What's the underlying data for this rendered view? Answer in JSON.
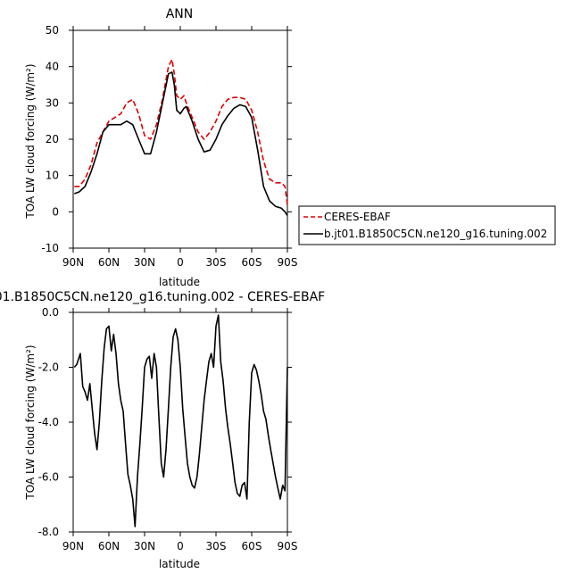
{
  "chart_data": [
    {
      "type": "line",
      "title": "ANN",
      "xlabel": "latitude",
      "ylabel": "TOA LW cloud forcing (W/m²)",
      "xlim": [
        90,
        -90
      ],
      "ylim": [
        -10,
        50
      ],
      "xticks": [
        90,
        60,
        30,
        0,
        -30,
        -60,
        -90
      ],
      "xtick_labels": [
        "90N",
        "60N",
        "30N",
        "0",
        "30S",
        "60S",
        "90S"
      ],
      "yticks": [
        -10,
        0,
        10,
        20,
        30,
        40,
        50
      ],
      "ytick_labels": [
        "-10",
        "0",
        "10",
        "20",
        "30",
        "40",
        "50"
      ],
      "legend": "right",
      "series": [
        {
          "name": "CERES-EBAF",
          "color": "#dd0000",
          "style": "dashed",
          "x": [
            89,
            85,
            80,
            75,
            70,
            65,
            60,
            55,
            50,
            45,
            40,
            35,
            30,
            25,
            20,
            15,
            10,
            7,
            5,
            3,
            0,
            -3,
            -5,
            -10,
            -15,
            -20,
            -25,
            -30,
            -35,
            -40,
            -45,
            -50,
            -55,
            -60,
            -65,
            -70,
            -75,
            -80,
            -85,
            -88,
            -90
          ],
          "y": [
            7,
            7,
            9,
            13,
            19,
            22,
            25,
            26,
            27,
            30,
            31,
            27,
            21,
            20,
            24,
            31,
            40,
            42,
            38,
            32,
            31,
            32,
            30,
            26,
            22,
            20,
            22,
            25,
            29,
            31,
            31.5,
            31.5,
            31,
            28,
            22,
            14,
            9,
            8,
            8,
            7,
            2
          ]
        },
        {
          "name": "b.jt01.B1850C5CN.ne120_g16.tuning.002",
          "color": "#000000",
          "style": "solid",
          "x": [
            89,
            85,
            80,
            75,
            70,
            65,
            60,
            55,
            50,
            45,
            40,
            35,
            30,
            25,
            20,
            15,
            10,
            7,
            5,
            3,
            0,
            -3,
            -5,
            -10,
            -15,
            -20,
            -25,
            -30,
            -35,
            -40,
            -45,
            -50,
            -55,
            -60,
            -65,
            -70,
            -75,
            -80,
            -85,
            -88,
            -90
          ],
          "y": [
            5,
            5.5,
            7,
            11,
            16,
            22,
            24,
            24,
            24,
            25,
            24,
            20,
            16,
            16,
            22,
            30,
            38,
            38.5,
            35,
            28,
            27,
            28.5,
            29,
            25,
            20,
            16.5,
            17,
            20,
            24,
            26.5,
            28.5,
            29.5,
            29,
            26,
            17,
            7,
            3,
            1.5,
            1,
            0,
            -1
          ]
        }
      ]
    },
    {
      "type": "line",
      "title": "01.B1850C5CN.ne120_g16.tuning.002 - CERES-EBAF",
      "xlabel": "latitude",
      "ylabel": "TOA LW cloud forcing (W/m²)",
      "xlim": [
        90,
        -90
      ],
      "ylim": [
        -8,
        0
      ],
      "xticks": [
        90,
        60,
        30,
        0,
        -30,
        -60,
        -90
      ],
      "xtick_labels": [
        "90N",
        "60N",
        "30N",
        "0",
        "30S",
        "60S",
        "90S"
      ],
      "yticks": [
        -8,
        -6,
        -4,
        -2,
        0
      ],
      "ytick_labels": [
        "-8.0",
        "-6.0",
        "-4.0",
        "-2.0",
        "0.0"
      ],
      "series": [
        {
          "name": "",
          "color": "#000000",
          "style": "solid",
          "x": [
            89,
            87,
            84,
            82,
            80,
            78,
            76,
            74,
            72,
            70,
            68,
            66,
            64,
            62,
            60,
            58,
            56,
            54,
            52,
            50,
            48,
            46,
            44,
            42,
            40,
            38,
            36,
            34,
            32,
            30,
            28,
            26,
            24,
            22,
            20,
            18,
            16,
            14,
            12,
            10,
            8,
            6,
            4,
            2,
            0,
            -2,
            -4,
            -6,
            -8,
            -10,
            -12,
            -14,
            -16,
            -18,
            -20,
            -22,
            -24,
            -26,
            -28,
            -30,
            -32,
            -34,
            -36,
            -38,
            -40,
            -42,
            -44,
            -46,
            -48,
            -50,
            -52,
            -54,
            -56,
            -58,
            -60,
            -62,
            -64,
            -66,
            -68,
            -70,
            -72,
            -74,
            -76,
            -78,
            -80,
            -82,
            -84,
            -86,
            -88,
            -90
          ],
          "y": [
            -2.0,
            -1.9,
            -1.5,
            -2.7,
            -2.9,
            -3.2,
            -2.6,
            -3.5,
            -4.4,
            -5.0,
            -4.0,
            -2.5,
            -1.3,
            -0.6,
            -0.5,
            -1.4,
            -0.8,
            -1.5,
            -2.6,
            -3.2,
            -3.6,
            -4.8,
            -5.9,
            -6.3,
            -6.8,
            -7.8,
            -6.0,
            -4.8,
            -3.5,
            -2.0,
            -1.7,
            -1.6,
            -2.4,
            -1.5,
            -2.0,
            -3.8,
            -5.5,
            -6.0,
            -5.0,
            -3.5,
            -2.0,
            -0.9,
            -0.6,
            -1.0,
            -2.0,
            -3.5,
            -4.5,
            -5.5,
            -6.0,
            -6.3,
            -6.4,
            -6.0,
            -5.2,
            -4.2,
            -3.2,
            -2.5,
            -1.8,
            -1.5,
            -2.0,
            -0.5,
            -0.1,
            -1.8,
            -2.5,
            -3.5,
            -4.2,
            -4.8,
            -5.5,
            -6.2,
            -6.6,
            -6.7,
            -6.3,
            -6.2,
            -6.8,
            -4.0,
            -2.2,
            -1.9,
            -2.1,
            -2.5,
            -3.0,
            -3.6,
            -3.9,
            -4.5,
            -5.0,
            -5.5,
            -6.0,
            -6.4,
            -6.8,
            -6.3,
            -6.5,
            -2.0
          ]
        }
      ]
    }
  ]
}
